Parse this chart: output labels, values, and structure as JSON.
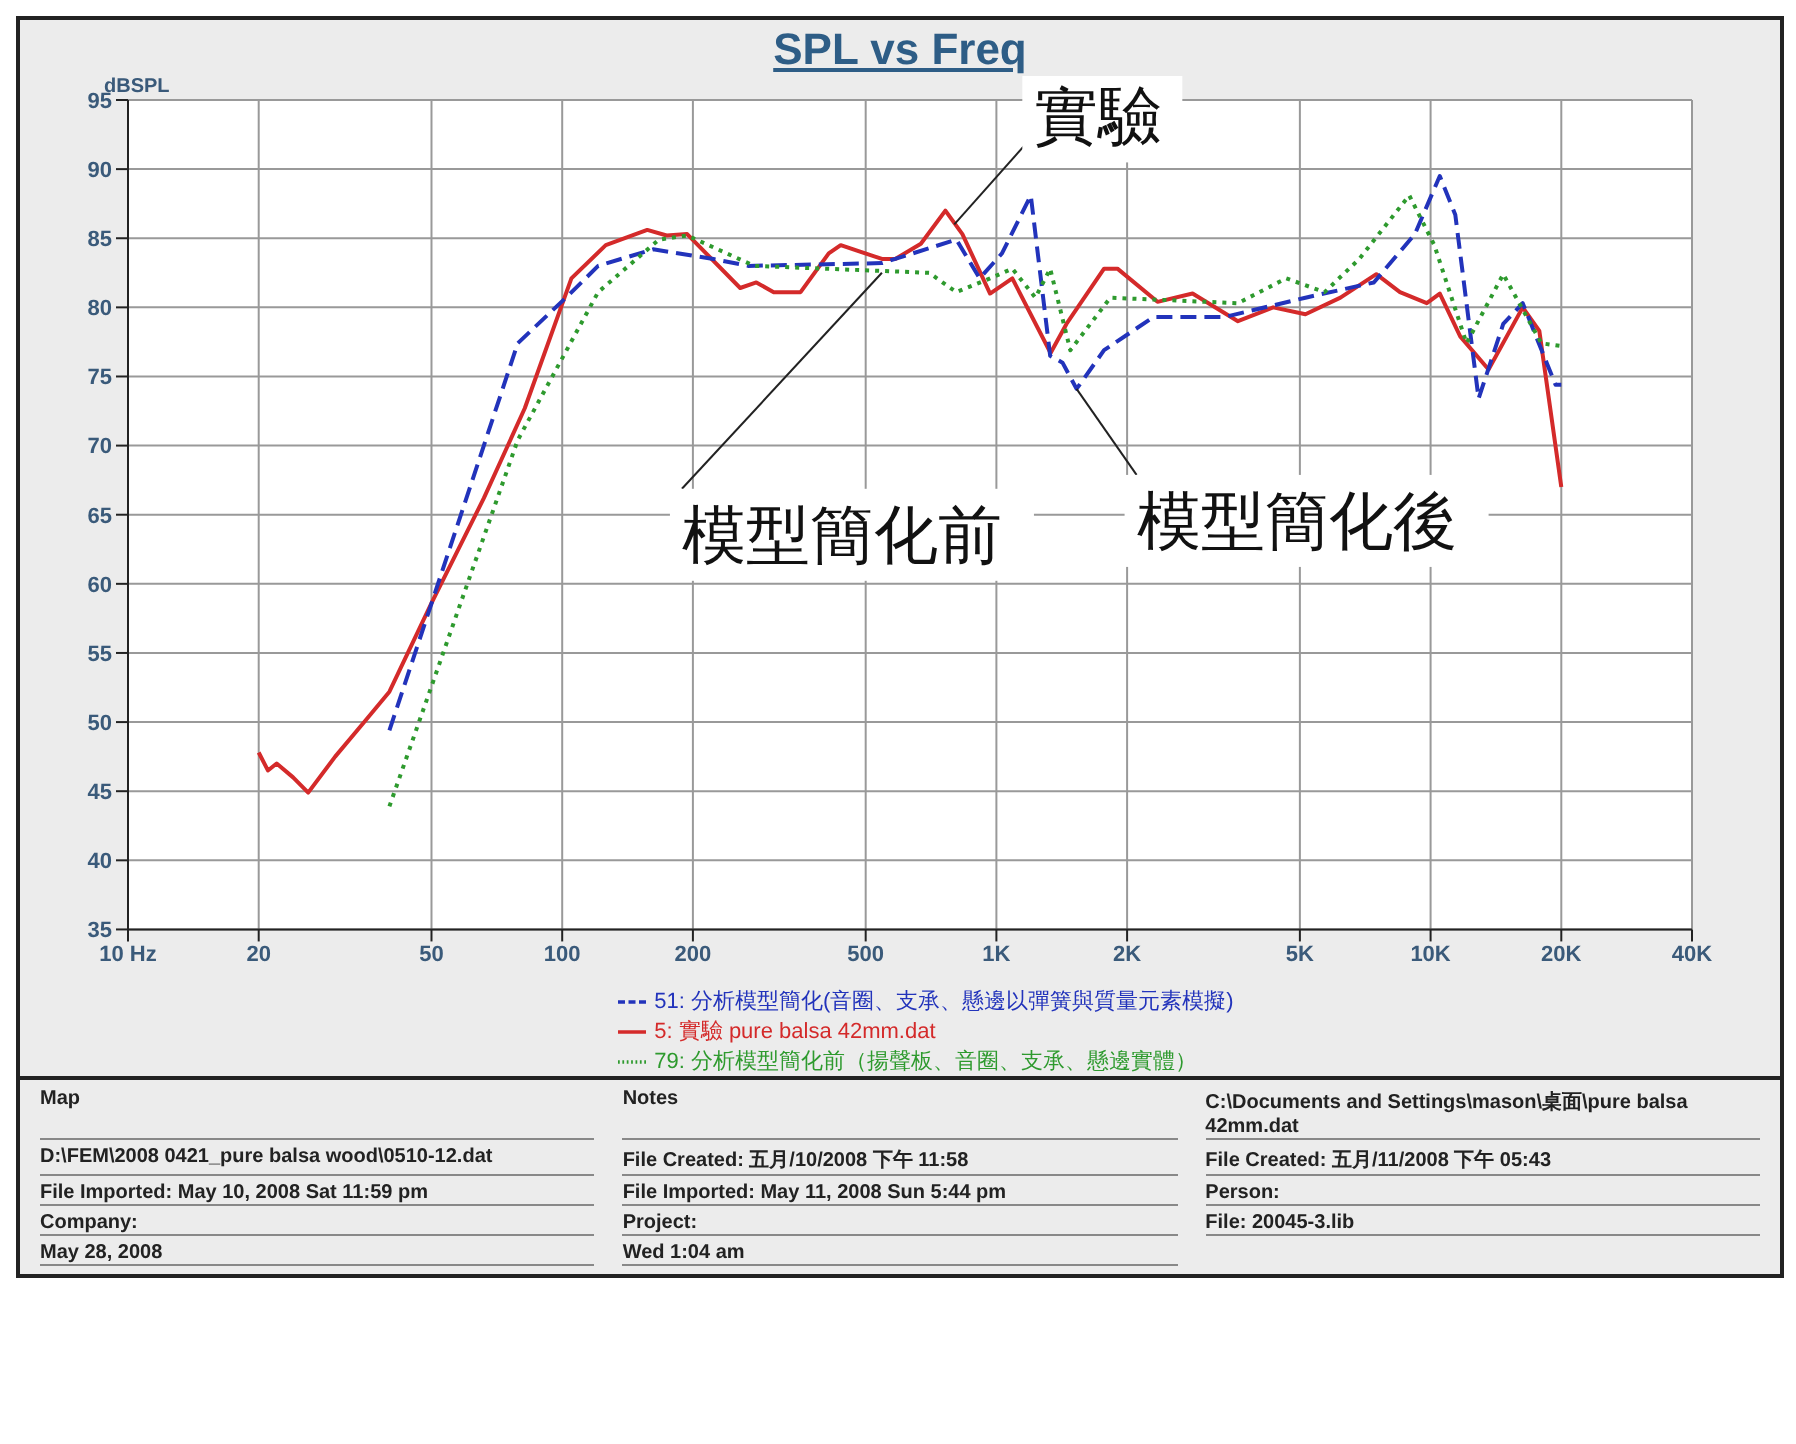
{
  "chart_data": {
    "type": "line",
    "title": "SPL vs Freq",
    "ylabel": "dBSPL",
    "xlim": [
      10,
      40000
    ],
    "ylim": [
      35,
      95
    ],
    "log": "x",
    "xticks": [
      {
        "value": 10,
        "label": "10 Hz"
      },
      20,
      50,
      100,
      200,
      500,
      {
        "value": 1000,
        "label": "1K"
      },
      {
        "value": 2000,
        "label": "2K"
      },
      {
        "value": 5000,
        "label": "5K"
      },
      {
        "value": 10000,
        "label": "10K"
      },
      {
        "value": 20000,
        "label": "20K"
      },
      {
        "value": 40000,
        "label": "40K"
      }
    ],
    "yticks": [
      35,
      40,
      45,
      50,
      55,
      60,
      65,
      70,
      75,
      80,
      85,
      90,
      95
    ],
    "grid": true,
    "legend": "bottom",
    "marker": "none",
    "series": [
      {
        "name": "5: 實驗 pure balsa 42mm.dat",
        "color": "#d42a2a",
        "line_style": "solid",
        "x": [
          20,
          21,
          22,
          24,
          26,
          30,
          35,
          40,
          50,
          66,
          82,
          105,
          126,
          157,
          174,
          194,
          257,
          280,
          307,
          354,
          411,
          438,
          545,
          585,
          670,
          763,
          835,
          967,
          1088,
          1333,
          1450,
          1770,
          1900,
          2350,
          2830,
          3600,
          4340,
          5150,
          6200,
          7500,
          8500,
          9800,
          10500,
          11700,
          13600,
          16300,
          17800,
          20000
        ],
        "values": [
          47.8,
          46.5,
          47,
          46,
          44.9,
          47.5,
          50,
          52.2,
          58.6,
          66.2,
          72.7,
          82.1,
          84.5,
          85.6,
          85.2,
          85.3,
          81.4,
          81.8,
          81.1,
          81.1,
          83.9,
          84.5,
          83.5,
          83.5,
          84.6,
          87,
          85.3,
          81,
          82.1,
          76.7,
          78.8,
          82.8,
          82.8,
          80.4,
          81,
          79,
          80,
          79.5,
          80.7,
          82.4,
          81.1,
          80.3,
          81,
          77.9,
          75.5,
          80,
          78.3,
          67
        ]
      },
      {
        "name": "51: 分析模型簡化(音圈、支承、懸邊以彈簧與質量元素模擬)",
        "color": "#2233bb",
        "line_style": "dashed",
        "x": [
          40,
          79,
          102,
          121,
          162,
          223,
          268,
          545,
          809,
          915,
          1030,
          1200,
          1330,
          1420,
          1530,
          1770,
          2300,
          3350,
          5150,
          7400,
          9200,
          10500,
          11400,
          12900,
          14700,
          16300,
          19400,
          20000
        ],
        "values": [
          49.4,
          77.4,
          80.7,
          83,
          84.2,
          83.5,
          83,
          83.2,
          84.9,
          82.1,
          83.9,
          88.1,
          76.5,
          76,
          74.1,
          76.9,
          79.3,
          79.3,
          80.7,
          81.8,
          85.3,
          89.5,
          86.7,
          73.4,
          78.8,
          80.3,
          74.4,
          74.4
        ]
      },
      {
        "name": "79: 分析模型簡化前（揚聲板、音圈、支承、懸邊實體）",
        "color": "#2e9a2e",
        "line_style": "dotted",
        "x": [
          40,
          79,
          121,
          167,
          194,
          277,
          700,
          809,
          967,
          1088,
          1230,
          1330,
          1480,
          1830,
          3600,
          4650,
          5700,
          6850,
          8930,
          10200,
          12100,
          14700,
          18000,
          20000
        ],
        "values": [
          43.9,
          70.4,
          81.1,
          84.9,
          85.2,
          83,
          82.5,
          81.1,
          82.1,
          82.8,
          80.7,
          82.8,
          76.9,
          80.7,
          80.3,
          82.1,
          81.1,
          83.5,
          88.1,
          84.5,
          77.4,
          82.4,
          77.4,
          77.2
        ]
      }
    ],
    "annotations": [
      {
        "text": "實驗",
        "x": 800,
        "y": 86
      },
      {
        "text": "模型簡化前",
        "x": 545,
        "y": 82.5
      },
      {
        "text": "模型簡化後",
        "x": 1530,
        "y": 74.1
      },
      "Map",
      "Notes",
      "C:\\Documents and Settings\\mason\\桌面\\pure balsa 42mm.dat",
      "D:\\FEM\\2008 0421_pure balsa wood\\0510-12.dat",
      "File Created: 五月/10/2008 下午 11:58",
      "File Created: 五月/11/2008 下午 05:43",
      "File Imported: May 10, 2008  Sat 11:59 pm",
      "File Imported: May 11, 2008  Sun  5:44 pm",
      "Person:",
      "Company:",
      "Project:",
      "File: 20045-3.lib",
      "May 28, 2008",
      "Wed 1:04 am"
    ]
  }
}
